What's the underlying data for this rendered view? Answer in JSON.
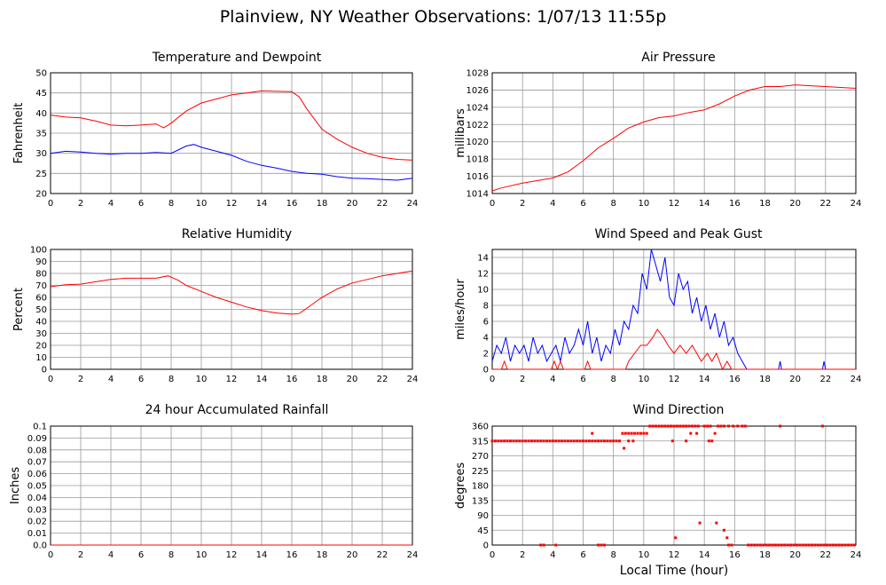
{
  "page": {
    "title": "Plainview, NY Weather Observations: 1/07/13 11:55p",
    "x_axis_title": "Local Time (hour)"
  },
  "colors": {
    "primary": "#ff0000",
    "secondary": "#0000ff",
    "grid": "#9a9a9a"
  },
  "chart_data": [
    {
      "id": "temperature",
      "type": "line",
      "title": "Temperature and Dewpoint",
      "ylabel": "Fahrenheit",
      "xlim": [
        0,
        24
      ],
      "ylim": [
        20,
        50
      ],
      "xticks": [
        0,
        2,
        4,
        6,
        8,
        10,
        12,
        14,
        16,
        18,
        20,
        22,
        24
      ],
      "yticks": [
        20,
        25,
        30,
        35,
        40,
        45,
        50
      ],
      "series": [
        {
          "color": "#ff0000",
          "x": [
            0,
            1,
            2,
            3,
            4,
            5,
            6,
            7,
            7.5,
            8,
            9,
            10,
            11,
            12,
            13,
            14,
            15,
            16,
            16.5,
            17,
            18,
            19,
            20,
            21,
            22,
            23,
            24
          ],
          "y": [
            39.5,
            39,
            38.8,
            38,
            37,
            36.8,
            37,
            37.3,
            36.3,
            37.5,
            40.5,
            42.5,
            43.5,
            44.5,
            45,
            45.5,
            45.4,
            45.3,
            44,
            41,
            36,
            33.5,
            31.5,
            30,
            29,
            28.5,
            28.3
          ]
        },
        {
          "color": "#0000ff",
          "x": [
            0,
            1,
            2,
            3,
            4,
            5,
            6,
            7,
            8,
            9,
            9.5,
            10,
            11,
            12,
            13,
            14,
            15,
            16,
            17,
            18,
            19,
            20,
            21,
            22,
            23,
            24
          ],
          "y": [
            30,
            30.5,
            30.3,
            30,
            29.8,
            30,
            30,
            30.2,
            30,
            31.8,
            32.2,
            31.5,
            30.5,
            29.5,
            28,
            27,
            26.3,
            25.5,
            25,
            24.8,
            24.2,
            23.8,
            23.7,
            23.5,
            23.3,
            23.8
          ]
        }
      ]
    },
    {
      "id": "pressure",
      "type": "line",
      "title": "Air Pressure",
      "ylabel": "millibars",
      "xlim": [
        0,
        24
      ],
      "ylim": [
        1014,
        1028
      ],
      "xticks": [
        0,
        2,
        4,
        6,
        8,
        10,
        12,
        14,
        16,
        18,
        20,
        22,
        24
      ],
      "yticks": [
        1014,
        1016,
        1018,
        1020,
        1022,
        1024,
        1026,
        1028
      ],
      "series": [
        {
          "color": "#ff0000",
          "x": [
            0,
            0.5,
            1,
            2,
            3,
            4,
            5,
            6,
            7,
            8,
            9,
            10,
            11,
            12,
            13,
            14,
            15,
            16,
            17,
            18,
            19,
            20,
            21,
            22,
            23,
            24
          ],
          "y": [
            1014.3,
            1014.6,
            1014.8,
            1015.2,
            1015.5,
            1015.8,
            1016.5,
            1017.8,
            1019.3,
            1020.4,
            1021.6,
            1022.3,
            1022.8,
            1023,
            1023.4,
            1023.7,
            1024.4,
            1025.3,
            1026,
            1026.4,
            1026.4,
            1026.6,
            1026.5,
            1026.4,
            1026.3,
            1026.2
          ]
        }
      ]
    },
    {
      "id": "humidity",
      "type": "line",
      "title": "Relative Humidity",
      "ylabel": "Percent",
      "xlim": [
        0,
        24
      ],
      "ylim": [
        0,
        100
      ],
      "xticks": [
        0,
        2,
        4,
        6,
        8,
        10,
        12,
        14,
        16,
        18,
        20,
        22,
        24
      ],
      "yticks": [
        0,
        10,
        20,
        30,
        40,
        50,
        60,
        70,
        80,
        90,
        100
      ],
      "series": [
        {
          "color": "#ff0000",
          "x": [
            0,
            1,
            2,
            3,
            4,
            5,
            6,
            7,
            7.8,
            8.5,
            9,
            10,
            11,
            12,
            13,
            14,
            15,
            16,
            16.5,
            17,
            18,
            19,
            20,
            21,
            22,
            23,
            24
          ],
          "y": [
            69,
            70.5,
            71,
            73,
            75,
            76,
            76,
            76,
            78,
            74,
            70,
            65,
            60,
            56,
            52,
            49,
            47,
            46,
            46.5,
            51,
            60,
            67,
            72,
            75,
            78,
            80,
            82
          ]
        }
      ]
    },
    {
      "id": "wind",
      "type": "line",
      "title": "Wind Speed and Peak Gust",
      "ylabel": "miles/hour",
      "xlim": [
        0,
        24
      ],
      "ylim": [
        0,
        15
      ],
      "xticks": [
        0,
        2,
        4,
        6,
        8,
        10,
        12,
        14,
        16,
        18,
        20,
        22,
        24
      ],
      "yticks": [
        0,
        2,
        4,
        6,
        8,
        10,
        12,
        14
      ],
      "series": [
        {
          "color": "#0000ff",
          "x": [
            0,
            0.3,
            0.6,
            0.9,
            1.2,
            1.5,
            1.8,
            2.1,
            2.4,
            2.7,
            3,
            3.3,
            3.6,
            3.9,
            4.2,
            4.5,
            4.8,
            5.1,
            5.4,
            5.7,
            6,
            6.3,
            6.6,
            6.9,
            7.2,
            7.5,
            7.8,
            8.1,
            8.4,
            8.7,
            9,
            9.3,
            9.6,
            9.9,
            10.2,
            10.5,
            10.8,
            11.1,
            11.4,
            11.7,
            12,
            12.3,
            12.6,
            12.9,
            13.2,
            13.5,
            13.8,
            14.1,
            14.4,
            14.7,
            15,
            15.3,
            15.6,
            15.9,
            16.2,
            16.5,
            16.8,
            17,
            18.9,
            19,
            19.1,
            21.8,
            21.9,
            22,
            24
          ],
          "y": [
            1,
            3,
            2,
            4,
            1,
            3,
            2,
            3,
            1,
            4,
            2,
            3,
            1,
            2,
            3,
            1,
            4,
            2,
            3,
            5,
            3,
            6,
            2,
            4,
            1,
            3,
            2,
            5,
            3,
            6,
            5,
            8,
            7,
            12,
            10,
            15,
            13,
            11,
            14,
            9,
            8,
            12,
            10,
            11,
            7,
            9,
            6,
            8,
            5,
            7,
            4,
            6,
            3,
            4,
            2,
            1,
            0,
            0,
            0,
            1,
            0,
            0,
            1,
            0,
            0
          ]
        },
        {
          "color": "#ff0000",
          "x": [
            0,
            0.6,
            0.8,
            1.0,
            1.2,
            3.9,
            4.1,
            4.3,
            4.5,
            4.7,
            6.1,
            6.3,
            6.5,
            6.7,
            8.6,
            8.8,
            9.0,
            9.4,
            9.8,
            10.2,
            10.6,
            10.9,
            11.3,
            11.6,
            12.0,
            12.4,
            12.8,
            13.2,
            13.5,
            13.8,
            14.2,
            14.5,
            14.8,
            15.2,
            15.5,
            15.8,
            16.0,
            24
          ],
          "y": [
            0,
            0,
            1,
            0,
            0,
            0,
            1,
            0,
            1,
            0,
            0,
            1,
            0,
            0,
            0,
            0,
            1,
            2,
            3,
            3,
            4,
            5,
            4,
            3,
            2,
            3,
            2,
            3,
            2,
            1,
            2,
            1,
            2,
            0,
            1,
            0,
            0,
            0
          ]
        }
      ]
    },
    {
      "id": "rainfall",
      "type": "line",
      "title": "24 hour Accumulated Rainfall",
      "ylabel": "Inches",
      "xlim": [
        0,
        24
      ],
      "ylim": [
        0,
        0.1
      ],
      "xticks": [
        0,
        2,
        4,
        6,
        8,
        10,
        12,
        14,
        16,
        18,
        20,
        22,
        24
      ],
      "yticks": [
        0.0,
        0.01,
        0.02,
        0.03,
        0.04,
        0.05,
        0.06,
        0.07,
        0.08,
        0.09,
        0.1
      ],
      "ytick_labels": [
        "0.0",
        "0.01",
        "0.02",
        "0.03",
        "0.04",
        "0.05",
        "0.06",
        "0.07",
        "0.08",
        "0.09",
        "0.1"
      ],
      "series": [
        {
          "color": "#ff0000",
          "x": [
            0,
            24
          ],
          "y": [
            0,
            0
          ]
        }
      ]
    },
    {
      "id": "direction",
      "type": "scatter",
      "title": "Wind Direction",
      "ylabel": "degrees",
      "xlim": [
        0,
        24
      ],
      "ylim": [
        0,
        360
      ],
      "xticks": [
        0,
        2,
        4,
        6,
        8,
        10,
        12,
        14,
        16,
        18,
        20,
        22,
        24
      ],
      "yticks": [
        0,
        45,
        90,
        135,
        180,
        225,
        270,
        315,
        360
      ],
      "series": [
        {
          "color": "#ff0000",
          "x": [
            0,
            0.2,
            0.4,
            0.6,
            0.8,
            1.0,
            1.2,
            1.4,
            1.6,
            1.8,
            2.0,
            2.2,
            2.4,
            2.6,
            2.8,
            3.0,
            3.2,
            3.4,
            3.6,
            3.8,
            4.0,
            4.2,
            4.4,
            4.6,
            4.8,
            5.0,
            5.2,
            5.4,
            5.6,
            5.8,
            6.0,
            6.2,
            6.4,
            6.6,
            6.8,
            7.0,
            7.2,
            7.4,
            7.6,
            7.8,
            8.0,
            8.2,
            8.4,
            3.2,
            3.4,
            4.2,
            7.0,
            7.2,
            7.4,
            6.6,
            8.6,
            8.8,
            9.0,
            9.2,
            9.4,
            9.6,
            9.8,
            10.0,
            10.2,
            8.7,
            9.0,
            9.3,
            10.4,
            10.6,
            10.8,
            11.0,
            11.2,
            11.4,
            11.6,
            11.8,
            12.0,
            12.2,
            12.4,
            12.6,
            12.8,
            13.0,
            13.2,
            13.4,
            13.6,
            11.9,
            12.8,
            13.1,
            13.5,
            14.3,
            14.5,
            14.7,
            12.1,
            13.7,
            14.8,
            15.3,
            15.5,
            15.6,
            15.8,
            14.0,
            14.2,
            14.4,
            14.9,
            15.1,
            15.3,
            15.6,
            15.9,
            16.2,
            16.5,
            16.7,
            16.9,
            17.1,
            17.3,
            17.5,
            17.7,
            17.9,
            18.1,
            18.3,
            18.5,
            18.7,
            18.9,
            19.1,
            19.3,
            19.5,
            19.7,
            19.9,
            20.1,
            20.3,
            20.5,
            20.7,
            20.9,
            21.1,
            21.3,
            21.5,
            21.7,
            21.9,
            22.1,
            22.3,
            22.5,
            22.7,
            22.9,
            23.1,
            23.3,
            23.5,
            23.7,
            23.9,
            19.0,
            21.8
          ],
          "y": [
            315,
            315,
            315,
            315,
            315,
            315,
            315,
            315,
            315,
            315,
            315,
            315,
            315,
            315,
            315,
            315,
            315,
            315,
            315,
            315,
            315,
            315,
            315,
            315,
            315,
            315,
            315,
            315,
            315,
            315,
            315,
            315,
            315,
            315,
            315,
            315,
            315,
            315,
            315,
            315,
            315,
            315,
            315,
            0,
            0,
            0,
            0,
            0,
            0,
            338,
            338,
            338,
            338,
            338,
            338,
            338,
            338,
            338,
            338,
            293,
            315,
            315,
            360,
            360,
            360,
            360,
            360,
            360,
            360,
            360,
            360,
            360,
            360,
            360,
            360,
            360,
            360,
            360,
            360,
            315,
            315,
            338,
            338,
            315,
            315,
            338,
            22,
            67,
            67,
            45,
            22,
            0,
            0,
            360,
            360,
            360,
            360,
            360,
            360,
            360,
            360,
            360,
            360,
            360,
            0,
            0,
            0,
            0,
            0,
            0,
            0,
            0,
            0,
            0,
            0,
            0,
            0,
            0,
            0,
            0,
            0,
            0,
            0,
            0,
            0,
            0,
            0,
            0,
            0,
            0,
            0,
            0,
            0,
            0,
            0,
            0,
            0,
            0,
            0,
            0,
            360,
            360
          ]
        }
      ]
    }
  ]
}
